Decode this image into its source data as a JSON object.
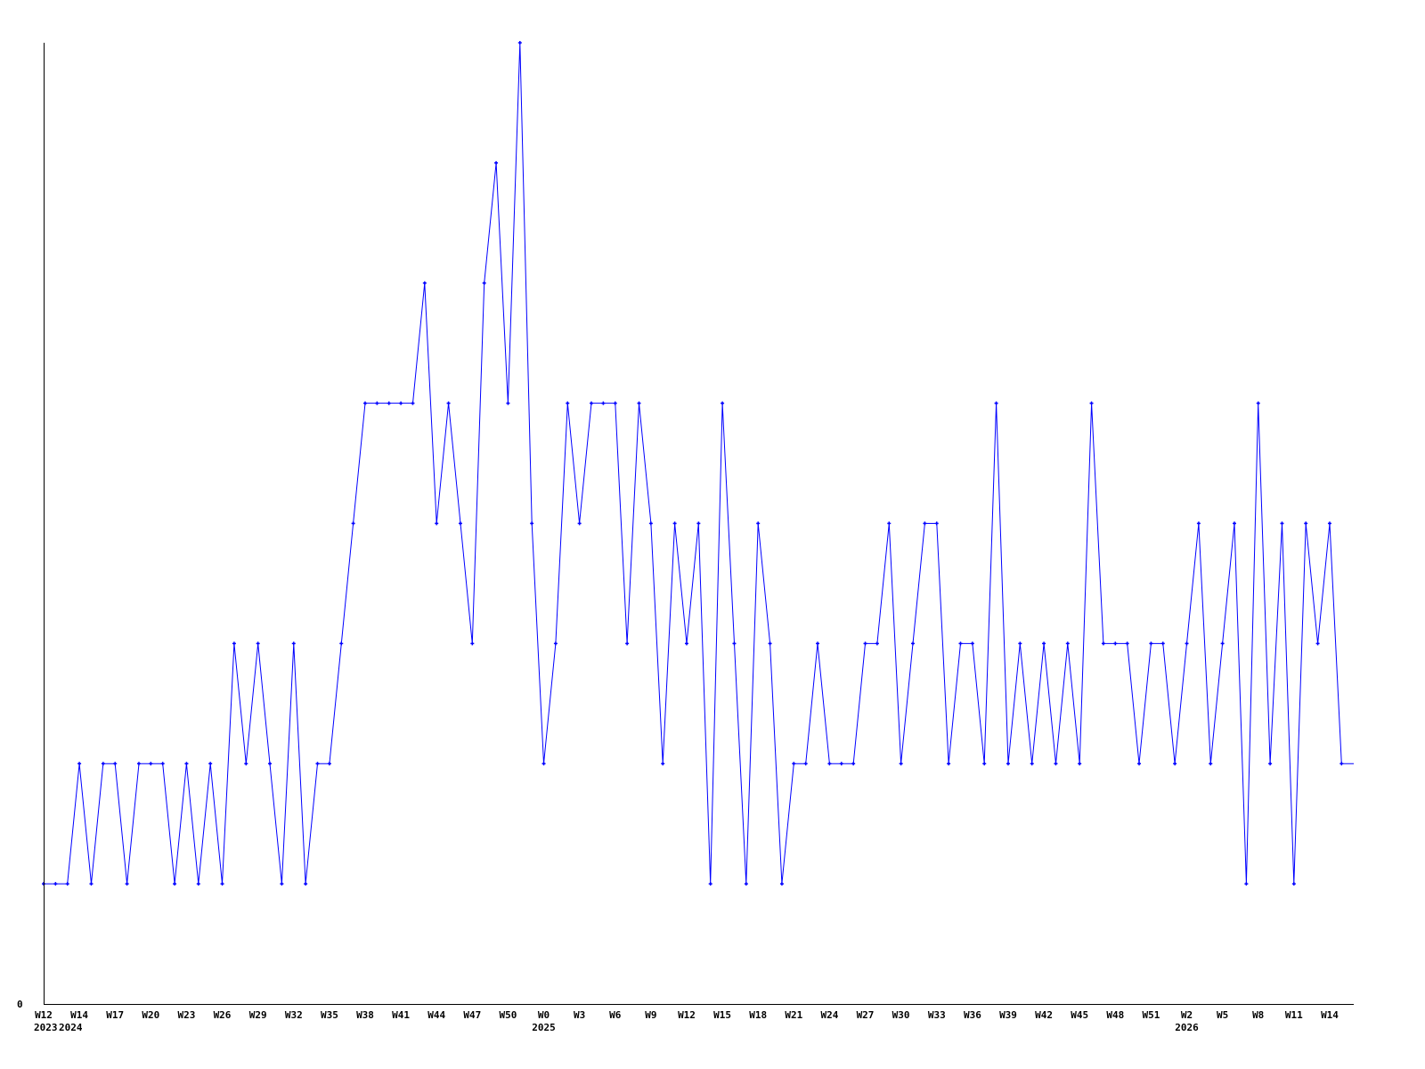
{
  "chart_data": {
    "type": "line",
    "title": "",
    "xlabel": "",
    "ylabel": "",
    "ylim": [
      0,
      8
    ],
    "y_tick_labels": [
      "0"
    ],
    "grid": false,
    "legend": "none",
    "colors": {
      "line": "#0000ff",
      "axis": "#000000"
    },
    "x_tick_labels": [
      "W12",
      "W14",
      "W17",
      "W20",
      "W23",
      "W26",
      "W29",
      "W32",
      "W35",
      "W38",
      "W41",
      "W44",
      "W47",
      "W50",
      "W0",
      "W3",
      "W6",
      "W9",
      "W12",
      "W15",
      "W18",
      "W21",
      "W24",
      "W27",
      "W30",
      "W33",
      "W36",
      "W39",
      "W42",
      "W45",
      "W48",
      "W51",
      "W2",
      "W5",
      "W8",
      "W11",
      "W14"
    ],
    "year_labels": [
      {
        "label": "2023",
        "tick": 0
      },
      {
        "label": "2024",
        "tick": 1
      },
      {
        "label": "2025",
        "tick": 14
      },
      {
        "label": "2026",
        "tick": 32
      }
    ],
    "values": [
      1,
      1,
      1,
      2,
      1,
      2,
      2,
      1,
      2,
      2,
      2,
      1,
      2,
      1,
      2,
      1,
      3,
      2,
      3,
      2,
      1,
      3,
      1,
      2,
      2,
      3,
      4,
      5,
      5,
      5,
      5,
      5,
      6,
      4,
      5,
      4,
      3,
      6,
      7,
      5,
      8,
      4,
      2,
      3,
      5,
      4,
      5,
      5,
      5,
      3,
      5,
      4,
      2,
      4,
      3,
      4,
      1,
      5,
      3,
      1,
      4,
      3,
      1,
      2,
      2,
      3,
      2,
      2,
      2,
      3,
      3,
      4,
      2,
      3,
      4,
      4,
      2,
      3,
      3,
      2,
      5,
      2,
      3,
      2,
      3,
      2,
      3,
      2,
      5,
      3,
      3,
      3,
      2,
      3,
      3,
      2,
      3,
      4,
      2,
      3,
      4,
      1,
      5,
      2,
      4,
      1,
      4,
      3,
      4,
      2
    ]
  }
}
